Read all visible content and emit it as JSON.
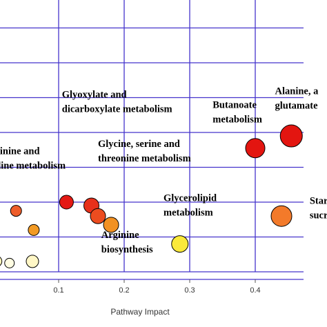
{
  "chart_data": {
    "type": "scatter",
    "xlabel": "Pathway Impact",
    "x_ticks": [
      "0.1",
      "0.2",
      "0.3",
      "0.4"
    ],
    "xlim": [
      -0.01,
      0.49
    ],
    "ylim": [
      0,
      8
    ],
    "grid": true,
    "colors": {
      "grid": "#4433cc",
      "axis": "#4433cc",
      "border": "#000000"
    },
    "points": [
      {
        "x": 0.0,
        "y": 1.3,
        "r": 7,
        "color": "#f5a14f"
      },
      {
        "x": 0.035,
        "y": 1.75,
        "r": 8,
        "color": "#ee5d2a"
      },
      {
        "x": 0.062,
        "y": 1.2,
        "r": 8,
        "color": "#f29a24"
      },
      {
        "x": 0.112,
        "y": 2.0,
        "r": 10,
        "color": "#e41a14"
      },
      {
        "x": 0.15,
        "y": 1.9,
        "r": 11,
        "color": "#e7301b"
      },
      {
        "x": 0.16,
        "y": 1.6,
        "r": 11,
        "color": "#ec4c1f"
      },
      {
        "x": 0.18,
        "y": 1.35,
        "r": 11,
        "color": "#f29122"
      },
      {
        "x": 0.285,
        "y": 0.8,
        "r": 12,
        "color": "#fbe93a"
      },
      {
        "x": 0.4,
        "y": 3.55,
        "r": 14,
        "color": "#e31510"
      },
      {
        "x": 0.44,
        "y": 1.6,
        "r": 15,
        "color": "#f37a2a"
      },
      {
        "x": 0.455,
        "y": 3.9,
        "r": 16,
        "color": "#e31510"
      },
      {
        "x": 0.005,
        "y": 0.3,
        "r": 8,
        "color": "#fff4b8"
      },
      {
        "x": 0.025,
        "y": 0.25,
        "r": 7,
        "color": "#fffde2"
      },
      {
        "x": 0.06,
        "y": 0.3,
        "r": 9,
        "color": "#fff7c6"
      }
    ],
    "annotations": [
      {
        "lines": [
          "Glyoxylate and",
          "dicarboxylate metabolism"
        ],
        "x": 0.105,
        "y": 5.0
      },
      {
        "lines": [
          "Arginine and",
          "proline metabolism"
        ],
        "x": -0.015,
        "y": 3.38
      },
      {
        "lines": [
          "Glycine, serine and",
          "threonine metabolism"
        ],
        "x": 0.16,
        "y": 3.58
      },
      {
        "lines": [
          "Butanoate",
          "metabolism"
        ],
        "x": 0.335,
        "y": 4.7
      },
      {
        "lines": [
          "Alanine, a",
          "glutamate"
        ],
        "x": 0.43,
        "y": 5.1
      },
      {
        "lines": [
          "Glycerolipid",
          "metabolism"
        ],
        "x": 0.26,
        "y": 2.03
      },
      {
        "lines": [
          "Arginine",
          "biosynthesis"
        ],
        "x": 0.165,
        "y": 0.97
      },
      {
        "lines": [
          "Starch",
          "sucros"
        ],
        "x": 0.483,
        "y": 1.95
      }
    ]
  }
}
